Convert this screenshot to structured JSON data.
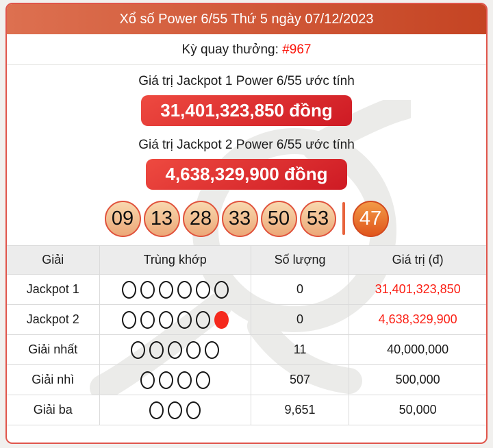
{
  "header": {
    "title": "Xổ số Power 6/55 Thứ 5 ngày 07/12/2023"
  },
  "draw": {
    "label": "Kỳ quay thưởng: ",
    "number": "#967"
  },
  "jackpot1": {
    "label": "Giá trị Jackpot 1 Power 6/55 ước tính",
    "value": "31,401,323,850 đồng"
  },
  "jackpot2": {
    "label": "Giá trị Jackpot 2 Power 6/55 ước tính",
    "value": "4,638,329,900 đồng"
  },
  "results": {
    "numbers": [
      "09",
      "13",
      "28",
      "33",
      "50",
      "53"
    ],
    "power_number": "47"
  },
  "prize_table": {
    "headers": [
      "Giải",
      "Trùng khớp",
      "Số lượng",
      "Giá trị (đ)"
    ],
    "rows": [
      {
        "prize": "Jackpot 1",
        "match_circles": 6,
        "match_power": false,
        "quantity": "0",
        "value": "31,401,323,850",
        "value_red": true
      },
      {
        "prize": "Jackpot 2",
        "match_circles": 5,
        "match_power": true,
        "quantity": "0",
        "value": "4,638,329,900",
        "value_red": true
      },
      {
        "prize": "Giải nhất",
        "match_circles": 5,
        "match_power": false,
        "quantity": "11",
        "value": "40,000,000",
        "value_red": false
      },
      {
        "prize": "Giải nhì",
        "match_circles": 4,
        "match_power": false,
        "quantity": "507",
        "value": "500,000",
        "value_red": false
      },
      {
        "prize": "Giải ba",
        "match_circles": 3,
        "match_power": false,
        "quantity": "9,651",
        "value": "50,000",
        "value_red": false
      }
    ]
  },
  "colors": {
    "header_gradient_left": "#dd7050",
    "header_gradient_right": "#c54423",
    "button_gradient_top": "#ee4a40",
    "button_gradient_bottom": "#ce1a24",
    "card_border": "#e0554b",
    "ball_border": "#e0523c",
    "power_ball": "#e0561c",
    "value_red": "#fb2015"
  }
}
